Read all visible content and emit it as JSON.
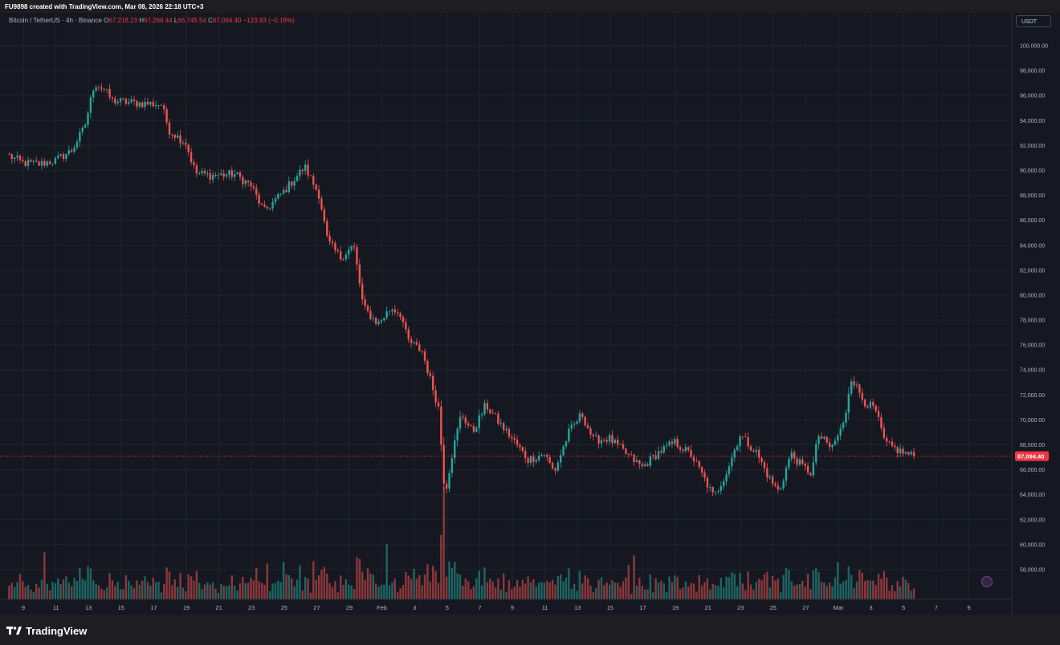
{
  "caption": "FU9898 created with TradingView.com, Mar 08, 2026 22:18 UTC+3",
  "legend": {
    "symbol": "Bitcoin / TetherUS · 4h · Binance",
    "open_label": "O",
    "open": "67,218.23",
    "high_label": "H",
    "high": "67,268.44",
    "low_label": "L",
    "low": "66,745.54",
    "close_label": "C",
    "close": "67,094.40",
    "change": "−123.83 (−0.18%)"
  },
  "currency_button": "USDT",
  "brand": "TradingView",
  "colors": {
    "up": "#26a69a",
    "down": "#ef5350",
    "background": "#151821",
    "grid": "#1f2430",
    "price_line": "#f23645"
  },
  "chart_data": {
    "type": "candlestick",
    "interval": "4h",
    "ylim": [
      56000,
      101000
    ],
    "y_ticks": [
      "100,000.00",
      "98,000.00",
      "96,000.00",
      "94,000.00",
      "92,000.00",
      "90,000.00",
      "88,000.00",
      "86,000.00",
      "84,000.00",
      "82,000.00",
      "80,000.00",
      "78,000.00",
      "76,000.00",
      "74,000.00",
      "72,000.00",
      "70,000.00",
      "68,000.00",
      "66,000.00",
      "64,000.00",
      "62,000.00",
      "60,000.00",
      "58,000.00"
    ],
    "x_ticks": [
      "9",
      "11",
      "13",
      "15",
      "17",
      "19",
      "21",
      "23",
      "25",
      "27",
      "29",
      "Feb",
      "3",
      "5",
      "7",
      "9",
      "11",
      "13",
      "15",
      "17",
      "19",
      "21",
      "23",
      "25",
      "27",
      "Mar",
      "3",
      "5",
      "7",
      "9"
    ],
    "last_price": 67094.4,
    "last_price_label": "67,094.40",
    "anchors": [
      {
        "d": 0,
        "p": 91300
      },
      {
        "d": 1,
        "p": 90600
      },
      {
        "d": 2,
        "p": 90500
      },
      {
        "d": 3,
        "p": 90800
      },
      {
        "d": 4,
        "p": 91600
      },
      {
        "d": 4.8,
        "p": 93500
      },
      {
        "d": 5.4,
        "p": 97000
      },
      {
        "d": 6,
        "p": 96500
      },
      {
        "d": 6.5,
        "p": 95600
      },
      {
        "d": 8,
        "p": 95400
      },
      {
        "d": 9.5,
        "p": 95300
      },
      {
        "d": 10,
        "p": 93200
      },
      {
        "d": 11,
        "p": 92200
      },
      {
        "d": 11.6,
        "p": 89800
      },
      {
        "d": 12.5,
        "p": 89600
      },
      {
        "d": 14,
        "p": 89700
      },
      {
        "d": 15,
        "p": 88800
      },
      {
        "d": 15.8,
        "p": 86700
      },
      {
        "d": 17,
        "p": 88300
      },
      {
        "d": 18.3,
        "p": 90300
      },
      {
        "d": 19.2,
        "p": 88000
      },
      {
        "d": 19.7,
        "p": 84300
      },
      {
        "d": 20.5,
        "p": 83000
      },
      {
        "d": 21.3,
        "p": 84000
      },
      {
        "d": 21.9,
        "p": 79000
      },
      {
        "d": 22.8,
        "p": 77700
      },
      {
        "d": 23.6,
        "p": 79000
      },
      {
        "d": 24.2,
        "p": 78500
      },
      {
        "d": 24.6,
        "p": 76400
      },
      {
        "d": 25.5,
        "p": 75500
      },
      {
        "d": 26.5,
        "p": 71000
      },
      {
        "d": 26.9,
        "p": 64000
      },
      {
        "d": 27.3,
        "p": 67000
      },
      {
        "d": 27.9,
        "p": 70500
      },
      {
        "d": 28.6,
        "p": 69000
      },
      {
        "d": 29.4,
        "p": 71200
      },
      {
        "d": 30.2,
        "p": 69800
      },
      {
        "d": 31.2,
        "p": 68200
      },
      {
        "d": 32,
        "p": 66800
      },
      {
        "d": 33,
        "p": 67300
      },
      {
        "d": 33.6,
        "p": 65800
      },
      {
        "d": 34.5,
        "p": 69000
      },
      {
        "d": 35.3,
        "p": 70500
      },
      {
        "d": 36,
        "p": 68400
      },
      {
        "d": 37,
        "p": 68500
      },
      {
        "d": 38,
        "p": 67300
      },
      {
        "d": 39,
        "p": 66200
      },
      {
        "d": 40,
        "p": 67400
      },
      {
        "d": 41,
        "p": 68200
      },
      {
        "d": 42,
        "p": 67200
      },
      {
        "d": 42.6,
        "p": 65800
      },
      {
        "d": 43.4,
        "p": 63800
      },
      {
        "d": 44.2,
        "p": 65900
      },
      {
        "d": 45,
        "p": 68800
      },
      {
        "d": 46,
        "p": 67400
      },
      {
        "d": 46.8,
        "p": 65300
      },
      {
        "d": 47.4,
        "p": 64200
      },
      {
        "d": 48.1,
        "p": 67300
      },
      {
        "d": 48.8,
        "p": 66300
      },
      {
        "d": 49.4,
        "p": 65700
      },
      {
        "d": 49.8,
        "p": 68800
      },
      {
        "d": 50.6,
        "p": 67700
      },
      {
        "d": 51.4,
        "p": 69800
      },
      {
        "d": 51.8,
        "p": 73500
      },
      {
        "d": 52.6,
        "p": 71500
      },
      {
        "d": 53.3,
        "p": 70800
      },
      {
        "d": 53.9,
        "p": 68100
      },
      {
        "d": 54.8,
        "p": 67500
      },
      {
        "d": 55.6,
        "p": 67094
      }
    ]
  }
}
